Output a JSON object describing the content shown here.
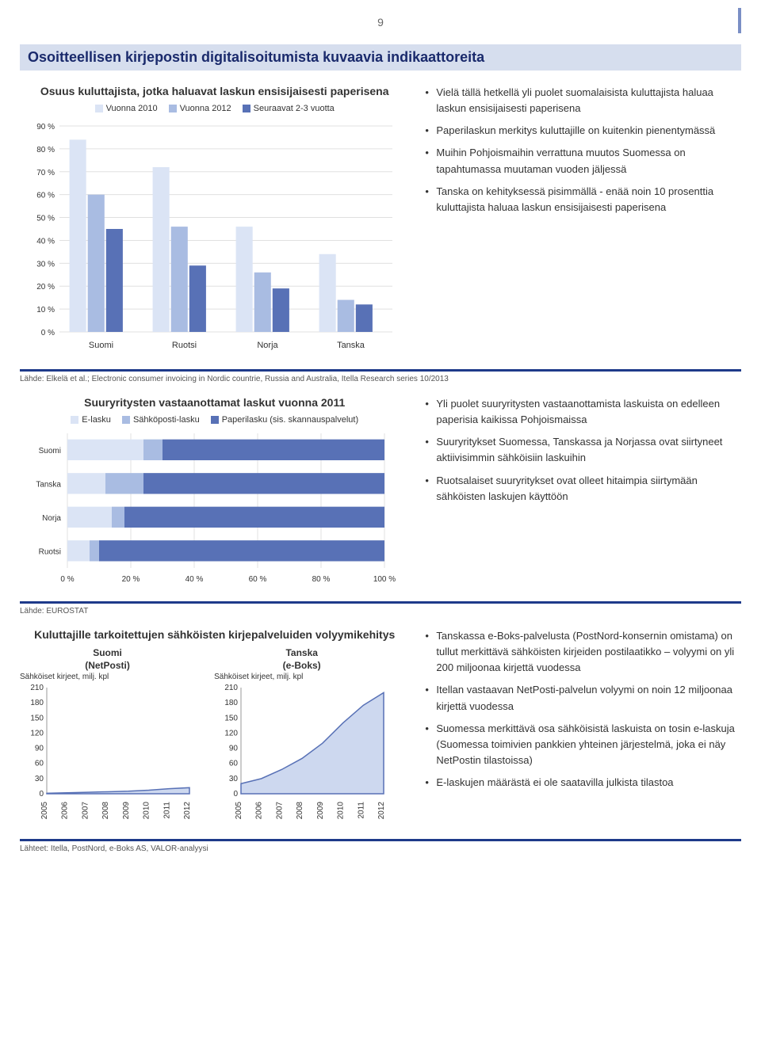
{
  "page_number": "9",
  "header_title": "Osoitteellisen kirjepostin digitalisoitumista kuvaavia indikaattoreita",
  "chart1": {
    "type": "bar",
    "title": "Osuus kuluttajista, jotka haluavat laskun ensisijaisesti paperisena",
    "categories": [
      "Suomi",
      "Ruotsi",
      "Norja",
      "Tanska"
    ],
    "series": [
      {
        "name": "Vuonna 2010",
        "color": "#dbe4f5",
        "values": [
          84,
          72,
          46,
          34
        ]
      },
      {
        "name": "Vuonna 2012",
        "color": "#a9bce2",
        "values": [
          60,
          46,
          26,
          14
        ]
      },
      {
        "name": "Seuraavat 2-3 vuotta",
        "color": "#5871b6",
        "values": [
          45,
          29,
          19,
          12
        ]
      }
    ],
    "ymin": 0,
    "ymax": 90,
    "ytick_step": 10,
    "ylabel_suffix": " %",
    "background": "#ffffff"
  },
  "bullets1": [
    "Vielä tällä hetkellä yli puolet suomalaisista kuluttajista haluaa laskun ensisijaisesti paperisena",
    "Paperilaskun merkitys kuluttajille on kuitenkin pienentymässä",
    "Muihin Pohjoismaihin verrattuna muutos Suomessa on tapahtumassa muutaman vuoden jäljessä",
    "Tanska on kehityksessä pisimmällä - enää noin 10 prosenttia kuluttajista haluaa laskun ensisijaisesti paperisena"
  ],
  "source1": "Lähde: Elkelä et al.; Electronic consumer invoicing in Nordic countrie, Russia and Australia, Itella Research series 10/2013",
  "chart2": {
    "type": "stacked-bar-horizontal",
    "title": "Suuryritysten vastaanottamat laskut vuonna 2011",
    "categories": [
      "Suomi",
      "Tanska",
      "Norja",
      "Ruotsi"
    ],
    "series": [
      {
        "name": "E-lasku",
        "color": "#dbe4f5",
        "values": [
          24,
          12,
          14,
          7
        ]
      },
      {
        "name": "Sähköposti-lasku",
        "color": "#a9bce2",
        "values": [
          6,
          12,
          4,
          3
        ]
      },
      {
        "name": "Paperilasku (sis. skannauspalvelut)",
        "color": "#5871b6",
        "values": [
          70,
          76,
          82,
          90
        ]
      }
    ],
    "xmin": 0,
    "xmax": 100,
    "xtick_step": 20,
    "xlabel_suffix": " %"
  },
  "bullets2": [
    "Yli puolet suuryritysten vastaanottamista laskuista on edelleen paperisia kaikissa Pohjoismaissa",
    "Suuryritykset Suomessa, Tanskassa ja Norjassa ovat siirtyneet aktiivisimmin sähköisiin laskuihin",
    "Ruotsalaiset suuryritykset ovat olleet hitaimpia siirtymään sähköisten laskujen käyttöön"
  ],
  "source2": "Lähde: EUROSTAT",
  "chart3": {
    "title": "Kuluttajille tarkoitettujen sähköisten kirjepalveluiden volyymikehitys",
    "ymin": 0,
    "ymax": 210,
    "ytick_step": 30,
    "axis_title": "Sähköiset kirjeet, milj. kpl",
    "years": [
      "2005",
      "2006",
      "2007",
      "2008",
      "2009",
      "2010",
      "2011",
      "2012"
    ],
    "panels": [
      {
        "title_line1": "Suomi",
        "title_line2": "(NetPosti)",
        "color": "#5871b6",
        "fill": "#cdd8ef",
        "values": [
          1,
          2,
          3,
          4,
          5,
          7,
          10,
          12
        ]
      },
      {
        "title_line1": "Tanska",
        "title_line2": "(e-Boks)",
        "color": "#5871b6",
        "fill": "#cdd8ef",
        "values": [
          20,
          30,
          48,
          70,
          100,
          140,
          175,
          200
        ]
      }
    ]
  },
  "bullets3": [
    "Tanskassa e-Boks-palvelusta (PostNord-konsernin omistama) on tullut merkittävä sähköisten kirjeiden postilaatikko – volyymi on yli 200 miljoonaa kirjettä vuodessa",
    "Itellan vastaavan NetPosti-palvelun volyymi on noin 12 miljoonaa kirjettä vuodessa",
    "Suomessa merkittävä osa sähköisistä laskuista on tosin e-laskuja (Suomessa toimivien pankkien yhteinen järjestelmä, joka ei näy NetPostin tilastoissa)",
    "E-laskujen määrästä ei ole saatavilla julkista tilastoa"
  ],
  "source3": "Lähteet: Itella, PostNord, e-Boks AS, VALOR-analyysi"
}
